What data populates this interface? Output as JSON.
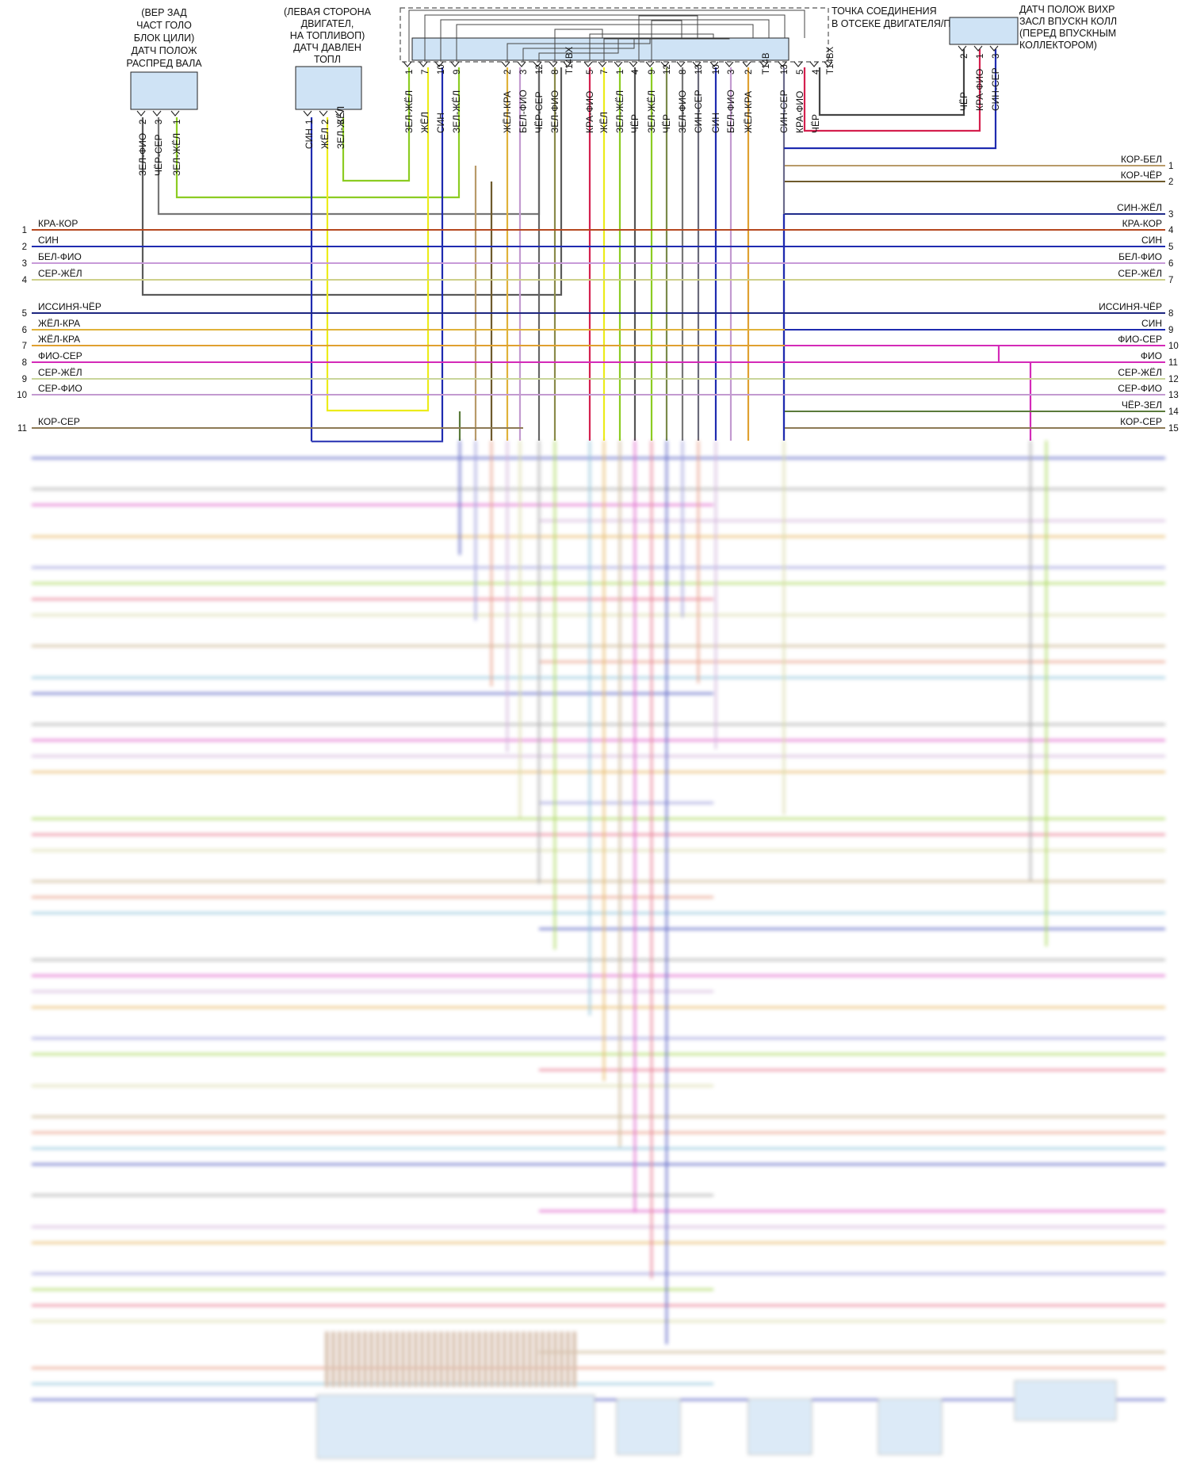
{
  "components": {
    "cam_sensor": [
      "(ВЕР ЗАД",
      "ЧАСТ ГОЛО",
      "БЛОК ЦИЛИ)",
      "ДАТЧ ПОЛОЖ",
      "РАСПРЕД ВАЛА"
    ],
    "fuel_pressure_sensor": [
      "(ЛЕВАЯ СТОРОНА",
      "ДВИГАТЕЛ,",
      "НА ТОПЛИВОП)",
      "ДАТЧ ДАВЛЕН",
      "ТОПЛ"
    ],
    "junction": [
      "ТОЧКА СОЕДИНЕНИЯ",
      "В ОТСЕКЕ ДВИГАТЕЛЯ/ПРИВОДА"
    ],
    "swirl_sensor": [
      "ДАТЧ ПОЛОЖ ВИХР",
      "ЗАСЛ ВПУСКН КОЛЛ",
      "(ПЕРЕД ВПУСКНЫМ",
      "КОЛЛЕКТОРОМ)"
    ]
  },
  "cam_pins": [
    {
      "wire": "ЗЕЛ-ФИО",
      "pin": "2"
    },
    {
      "wire": "ЧЁР-СЕР",
      "pin": "3"
    },
    {
      "wire": "ЗЕЛ-ЖЁЛ",
      "pin": "1"
    }
  ],
  "fuel_pins": [
    {
      "wire": "СИН",
      "pin": "1"
    },
    {
      "wire": "ЖЁЛ",
      "pin": "2"
    },
    {
      "wire": "ЗЕЛ-ЖЁЛ",
      "pin": "3"
    }
  ],
  "junction_pins": [
    {
      "pin": "1",
      "wire": "ЗЕЛ-ЖЁЛ"
    },
    {
      "pin": "7",
      "wire": "ЖЁЛ"
    },
    {
      "pin": "10",
      "wire": "СИН"
    },
    {
      "pin": "9",
      "wire": "ЗЕЛ-ЖЁЛ"
    },
    {
      "pin": "2",
      "wire": "ЖЁЛ-КРА"
    },
    {
      "pin": "3",
      "wire": "БЕЛ-ФИО"
    },
    {
      "pin": "12",
      "wire": "ЧЁР-СЕР"
    },
    {
      "pin": "8",
      "wire": "ЗЕЛ-ФИО"
    },
    {
      "pin": "T14BX",
      "wire": ""
    },
    {
      "pin": "5",
      "wire": "КРА-ФИО"
    },
    {
      "pin": "7",
      "wire": "ЖЁЛ"
    },
    {
      "pin": "1",
      "wire": "ЗЕЛ-ЖЁЛ"
    },
    {
      "pin": "4",
      "wire": "ЧЁР"
    },
    {
      "pin": "9",
      "wire": "ЗЕЛ-ЖЁЛ"
    },
    {
      "pin": "12",
      "wire": "ЧЁР"
    },
    {
      "pin": "8",
      "wire": "ЗЕЛ-ФИО"
    },
    {
      "pin": "13",
      "wire": "СИН-СЕР"
    },
    {
      "pin": "10",
      "wire": "СИН"
    },
    {
      "pin": "3",
      "wire": "БЕЛ-ФИО"
    },
    {
      "pin": "2",
      "wire": "ЖЁЛ-КРА"
    },
    {
      "pin": "T14B",
      "wire": ""
    },
    {
      "pin": "13",
      "wire": "СИН-СЕР"
    },
    {
      "pin": "5",
      "wire": "КРА-ФИО"
    },
    {
      "pin": "4",
      "wire": "ЧЁР"
    },
    {
      "pin": "T14BX",
      "wire": ""
    }
  ],
  "swirl_pins": [
    {
      "wire": "ЧЁР",
      "pin": "2"
    },
    {
      "wire": "КРА-ФИО",
      "pin": "1"
    },
    {
      "wire": "СИН-СЕР",
      "pin": "3"
    }
  ],
  "left_wires": [
    {
      "num": "1",
      "label": "КРА-КОР",
      "color": "#b5481f"
    },
    {
      "num": "2",
      "label": "СИН",
      "color": "#1f2bb0"
    },
    {
      "num": "3",
      "label": "БЕЛ-ФИО",
      "color": "#c79ad8"
    },
    {
      "num": "4",
      "label": "СЕР-ЖЁЛ",
      "color": "#cdd08a"
    },
    {
      "num": "5",
      "label": "ИССИНЯ-ЧЁР",
      "color": "#1d2680"
    },
    {
      "num": "6",
      "label": "ЖЁЛ-КРА",
      "color": "#e0b23a"
    },
    {
      "num": "7",
      "label": "ЖЁЛ-КРА",
      "color": "#e0a030"
    },
    {
      "num": "8",
      "label": "ФИО-СЕР",
      "color": "#d42ab8"
    },
    {
      "num": "9",
      "label": "СЕР-ЖЁЛ",
      "color": "#c9d59a"
    },
    {
      "num": "10",
      "label": "СЕР-ФИО",
      "color": "#c39ad0"
    },
    {
      "num": "11",
      "label": "КОР-СЕР",
      "color": "#8d7a55"
    }
  ],
  "right_wires": [
    {
      "num": "1",
      "label": "КОР-БЕЛ",
      "color": "#b89a68"
    },
    {
      "num": "2",
      "label": "КОР-ЧЁР",
      "color": "#6e5a2c"
    },
    {
      "num": "3",
      "label": "СИН-ЖЁЛ",
      "color": "#1f2b8a"
    },
    {
      "num": "4",
      "label": "КРА-КОР",
      "color": "#b5481f"
    },
    {
      "num": "5",
      "label": "СИН",
      "color": "#1f2bb0"
    },
    {
      "num": "6",
      "label": "БЕЛ-ФИО",
      "color": "#c79ad8"
    },
    {
      "num": "7",
      "label": "СЕР-ЖЁЛ",
      "color": "#cdd08a"
    },
    {
      "num": "8",
      "label": "ИССИНЯ-ЧЁР",
      "color": "#1d2680"
    },
    {
      "num": "9",
      "label": "СИН",
      "color": "#1f2bb0"
    },
    {
      "num": "10",
      "label": "ФИО-СЕР",
      "color": "#d42ab8"
    },
    {
      "num": "11",
      "label": "ФИО",
      "color": "#d42ab8"
    },
    {
      "num": "12",
      "label": "СЕР-ЖЁЛ",
      "color": "#c9d59a"
    },
    {
      "num": "13",
      "label": "СЕР-ФИО",
      "color": "#c39ad0"
    },
    {
      "num": "14",
      "label": "ЧЁР-ЗЕЛ",
      "color": "#5a7a3a"
    },
    {
      "num": "15",
      "label": "КОР-СЕР",
      "color": "#8d7a55"
    }
  ],
  "colors": {
    "yellow": "#ecec1a",
    "green_yellow": "#8ccc22",
    "blue": "#1f2bb0",
    "dark_gray": "#5a5a5a",
    "lilac": "#c39ad0",
    "red_violet": "#d4204e",
    "gray": "#8c8c8c",
    "box_fill": "#cfe3f5"
  }
}
